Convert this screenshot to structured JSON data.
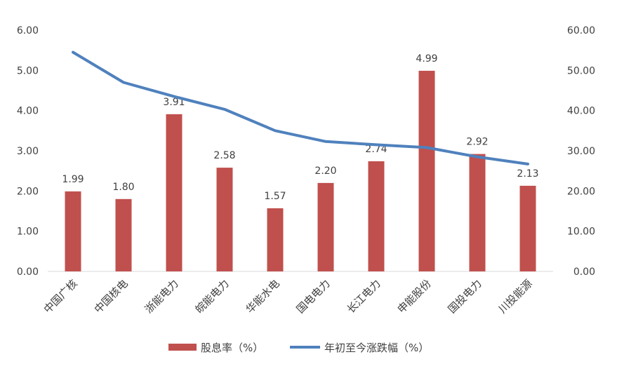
{
  "chart_data": {
    "type": "bar",
    "categories": [
      "中国广核",
      "中国核电",
      "浙能电力",
      "皖能电力",
      "华能水电",
      "国电电力",
      "长江电力",
      "申能股份",
      "国投电力",
      "川投能源"
    ],
    "series": [
      {
        "name": "股息率（%）",
        "type": "bar",
        "axis": "left",
        "color": "#C0504D",
        "values": [
          1.99,
          1.8,
          3.91,
          2.58,
          1.57,
          2.2,
          2.74,
          4.99,
          2.92,
          2.13
        ],
        "labels": [
          "1.99",
          "1.80",
          "3.91",
          "2.58",
          "1.57",
          "2.20",
          "2.74",
          "4.99",
          "2.92",
          "2.13"
        ]
      },
      {
        "name": "年初至今涨跌幅（%）",
        "type": "line",
        "axis": "right",
        "color": "#4F81BD",
        "values": [
          54.5,
          47.0,
          43.5,
          40.3,
          35.0,
          32.3,
          31.5,
          30.8,
          28.5,
          26.7
        ]
      }
    ],
    "y_left": {
      "ylim": [
        0,
        6
      ],
      "ticks": [
        "0.00",
        "1.00",
        "2.00",
        "3.00",
        "4.00",
        "5.00",
        "6.00"
      ]
    },
    "y_right": {
      "ylim": [
        0,
        60
      ],
      "ticks": [
        "0.00",
        "10.00",
        "20.00",
        "30.00",
        "40.00",
        "50.00",
        "60.00"
      ]
    },
    "grid": false,
    "legend_position": "bottom"
  }
}
